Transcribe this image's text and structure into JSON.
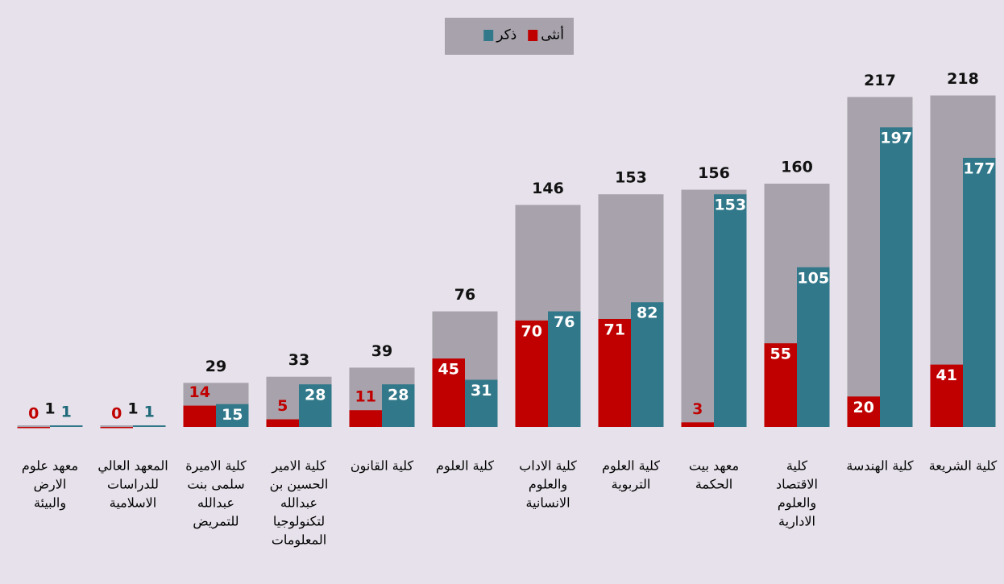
{
  "chart_data": {
    "type": "bar",
    "categories": [
      [
        "معهد علوم",
        "الارض",
        "والبيئة"
      ],
      [
        "المعهد العالي",
        "للدراسات",
        "الاسلامية"
      ],
      [
        "كلية الاميرة",
        "سلمى بنت",
        "عبدالله",
        "للتمريض"
      ],
      [
        "كلية الامير",
        "الحسين بن",
        "عبدالله",
        "لتكنولوجيا",
        "المعلومات"
      ],
      [
        "كلية القانون"
      ],
      [
        "كلية العلوم"
      ],
      [
        "كلية الاداب",
        "والعلوم",
        "الانسانية"
      ],
      [
        "كلية العلوم",
        "التربوية"
      ],
      [
        "معهد بيت",
        "الحكمة"
      ],
      [
        "كلية",
        "الاقتصاد",
        "والعلوم",
        "الادارية"
      ],
      [
        "كلية الهندسة"
      ],
      [
        "كلية الشريعة"
      ]
    ],
    "totals": {
      "color": "#a7a2ab",
      "values": [
        1,
        1,
        29,
        33,
        39,
        76,
        146,
        153,
        156,
        160,
        217,
        218
      ]
    },
    "series": [
      {
        "name": "أنثى",
        "color": "#c00000",
        "values": [
          0,
          0,
          14,
          5,
          11,
          45,
          70,
          71,
          3,
          55,
          20,
          41
        ]
      },
      {
        "name": "ذكر",
        "color": "#31788a",
        "values": [
          1,
          1,
          15,
          28,
          28,
          31,
          76,
          82,
          153,
          105,
          197,
          177
        ]
      }
    ],
    "ylim": [
      0,
      240
    ]
  }
}
